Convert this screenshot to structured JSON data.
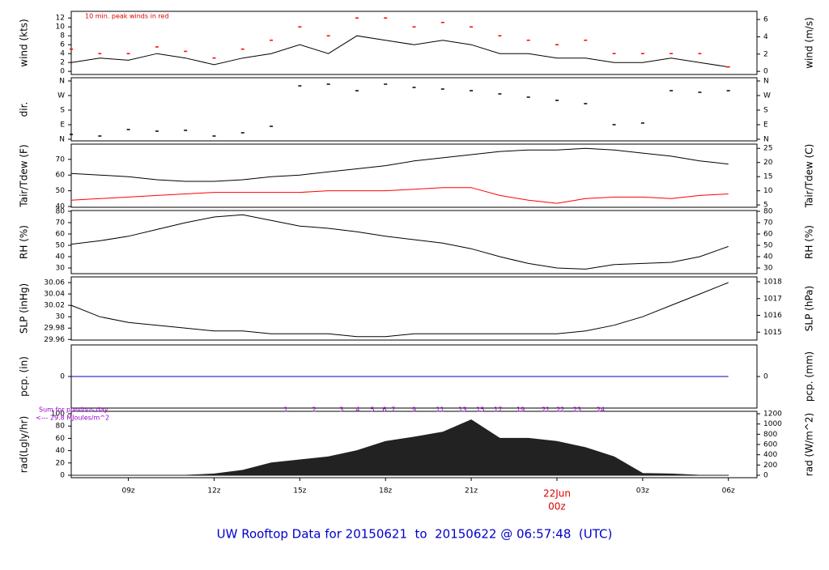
{
  "chart_data": [
    {
      "type": "line",
      "ylabel": "wind (kts)",
      "y2label": "wind (m/s)",
      "annotation": "10 min. peak winds in red",
      "x": [
        7,
        8,
        9,
        10,
        11,
        12,
        13,
        14,
        15,
        16,
        17,
        18,
        19,
        20,
        21,
        22,
        23,
        24,
        25,
        26,
        27,
        28,
        29,
        30
      ],
      "xlim": [
        7,
        31
      ],
      "ylim": [
        -0.7,
        13.5
      ],
      "yticks": [
        0,
        2,
        4,
        6,
        8,
        10,
        12
      ],
      "y2lim": [
        -0.36,
        6.94
      ],
      "y2ticks": [
        0,
        2,
        4,
        6
      ],
      "series": [
        {
          "color": "#000000",
          "values": [
            2,
            3,
            2.5,
            4,
            3,
            1.5,
            3,
            4,
            6,
            4,
            8,
            7,
            6,
            7,
            6,
            4,
            4,
            3,
            3,
            2,
            2,
            3,
            2,
            1
          ]
        },
        {
          "color": "#ff0000",
          "style": "points",
          "values": [
            5,
            4,
            4,
            5.5,
            4.5,
            3,
            5,
            7,
            10,
            8,
            12,
            12,
            10,
            11,
            10,
            8,
            7,
            6,
            7,
            4,
            4,
            4,
            4,
            1
          ]
        }
      ]
    },
    {
      "type": "scatter",
      "ylabel": "dir.",
      "mirror_ticks": true,
      "x": [
        7,
        8,
        9,
        10,
        11,
        12,
        13,
        14,
        15,
        16,
        17,
        18,
        19,
        20,
        21,
        22,
        23,
        24,
        25,
        26,
        27,
        28,
        29,
        30
      ],
      "xlim": [
        7,
        31
      ],
      "ylim": [
        -10,
        380
      ],
      "yticks": [
        {
          "value": 0,
          "label": "N"
        },
        {
          "value": 90,
          "label": "E"
        },
        {
          "value": 180,
          "label": "S"
        },
        {
          "value": 270,
          "label": "W"
        },
        {
          "value": 360,
          "label": "N"
        }
      ],
      "series": [
        {
          "color": "#000000",
          "values": [
            30,
            20,
            60,
            50,
            55,
            20,
            40,
            80,
            330,
            340,
            300,
            340,
            320,
            310,
            300,
            280,
            260,
            240,
            220,
            90,
            100,
            300,
            290,
            300
          ]
        }
      ]
    },
    {
      "type": "line",
      "ylabel": "Tair/Tdew (F)",
      "y2label": "Tair/Tdew (C)",
      "x": [
        7,
        8,
        9,
        10,
        11,
        12,
        13,
        14,
        15,
        16,
        17,
        18,
        19,
        20,
        21,
        22,
        23,
        24,
        25,
        26,
        27,
        28,
        29,
        30
      ],
      "xlim": [
        7,
        31
      ],
      "ylim": [
        39.5,
        79.7
      ],
      "yticks": [
        40,
        50,
        60,
        70
      ],
      "y2lim": [
        4.17,
        26.5
      ],
      "y2ticks": [
        5,
        10,
        15,
        20,
        25
      ],
      "series": [
        {
          "color": "#000000",
          "values": [
            61,
            60,
            59,
            57,
            56,
            56,
            57,
            59,
            60,
            62,
            64,
            66,
            69,
            71,
            73,
            75,
            76,
            76,
            77,
            76,
            74,
            72,
            69,
            67
          ]
        },
        {
          "color": "#ff0000",
          "values": [
            44,
            45,
            46,
            47,
            48,
            49,
            49,
            49,
            49,
            50,
            50,
            50,
            51,
            52,
            52,
            47,
            44,
            42,
            45,
            46,
            46,
            45,
            47,
            48
          ]
        }
      ]
    },
    {
      "type": "line",
      "ylabel": "RH (%)",
      "y2label": "RH (%)",
      "mirror_ticks": true,
      "x": [
        7,
        8,
        9,
        10,
        11,
        12,
        13,
        14,
        15,
        16,
        17,
        18,
        19,
        20,
        21,
        22,
        23,
        24,
        25,
        26,
        27,
        28,
        29,
        30
      ],
      "xlim": [
        7,
        31
      ],
      "ylim": [
        25,
        80.7
      ],
      "yticks": [
        30,
        40,
        50,
        60,
        70,
        80
      ],
      "series": [
        {
          "color": "#000000",
          "values": [
            51,
            54,
            58,
            64,
            70,
            75,
            77,
            72,
            67,
            65,
            62,
            58,
            55,
            52,
            47,
            40,
            34,
            30,
            29,
            33,
            34,
            35,
            40,
            49
          ]
        }
      ]
    },
    {
      "type": "line",
      "ylabel": "SLP (inHg)",
      "y2label": "SLP (hPa)",
      "x": [
        7,
        8,
        9,
        10,
        11,
        12,
        13,
        14,
        15,
        16,
        17,
        18,
        19,
        20,
        21,
        22,
        23,
        24,
        25,
        26,
        27,
        28,
        29,
        30
      ],
      "xlim": [
        7,
        31
      ],
      "ylim": [
        29.959,
        30.07
      ],
      "yticks": [
        29.96,
        29.98,
        30,
        30.02,
        30.04,
        30.06
      ],
      "y2lim": [
        1014.53,
        1018.29
      ],
      "y2ticks": [
        1015,
        1016,
        1017,
        1018
      ],
      "series": [
        {
          "color": "#000000",
          "values": [
            30.02,
            30,
            29.99,
            29.985,
            29.98,
            29.975,
            29.975,
            29.97,
            29.97,
            29.97,
            29.965,
            29.965,
            29.97,
            29.97,
            29.97,
            29.97,
            29.97,
            29.97,
            29.975,
            29.985,
            30,
            30.02,
            30.04,
            30.06
          ]
        }
      ]
    },
    {
      "type": "line",
      "ylabel": "pcp. (in)",
      "y2label": "pcp. (mm)",
      "x": [
        7,
        8,
        9,
        10,
        11,
        12,
        13,
        14,
        15,
        16,
        17,
        18,
        19,
        20,
        21,
        22,
        23,
        24,
        25,
        26,
        27,
        28,
        29,
        30
      ],
      "xlim": [
        7,
        31
      ],
      "ylim": [
        -1,
        1
      ],
      "yticks": [
        0
      ],
      "y2lim": [
        -1,
        1
      ],
      "y2ticks": [
        0
      ],
      "series": [
        {
          "color": "#0000cc",
          "values": [
            0,
            0,
            0,
            0,
            0,
            0,
            0,
            0,
            0,
            0,
            0,
            0,
            0,
            0,
            0,
            0,
            0,
            0,
            0,
            0,
            0,
            0,
            0,
            0
          ]
        }
      ]
    },
    {
      "type": "area",
      "ylabel": "rad(Lgly/hr)",
      "y2label": "rad (W/m^2)",
      "note1": "Sum for previous day",
      "note2": "<--- 29.8 MJoules/m^2",
      "x": [
        7,
        8,
        9,
        10,
        11,
        12,
        13,
        14,
        15,
        16,
        17,
        18,
        19,
        20,
        21,
        22,
        23,
        24,
        25,
        26,
        27,
        28,
        29,
        30
      ],
      "xlim": [
        7,
        31
      ],
      "ylim": [
        -4,
        104
      ],
      "yticks": [
        0,
        20,
        40,
        60,
        80,
        100
      ],
      "y2lim": [
        -48,
        1248
      ],
      "y2ticks": [
        0,
        200,
        400,
        600,
        800,
        1000,
        1200
      ],
      "series": [
        {
          "color": "#222222",
          "values": [
            0,
            0,
            0,
            0,
            0,
            2,
            8,
            20,
            25,
            30,
            40,
            55,
            62,
            70,
            90,
            60,
            60,
            55,
            45,
            30,
            3,
            2,
            0,
            0
          ]
        }
      ],
      "hour_marks": {
        "x": [
          14.51,
          15.5,
          16.46,
          17.03,
          17.54,
          17.96,
          18.27,
          19,
          19.91,
          20.7,
          21.32,
          21.94,
          22.73,
          23.61,
          24.12,
          24.71,
          25.53
        ],
        "labels": [
          "1",
          "2",
          "3",
          "4",
          "5",
          "6",
          "7",
          "9",
          "11",
          "13",
          "15",
          "17",
          "19",
          "21",
          "22",
          "23",
          "24"
        ]
      },
      "xticks": [
        {
          "value": 9,
          "label": "09z"
        },
        {
          "value": 12,
          "label": "12z"
        },
        {
          "value": 15,
          "label": "15z"
        },
        {
          "value": 18,
          "label": "18z"
        },
        {
          "value": 21,
          "label": "21z"
        },
        {
          "value": 24,
          "label": "00z"
        },
        {
          "value": 27,
          "label": "03z"
        },
        {
          "value": 30,
          "label": "06z"
        }
      ],
      "date_tick": {
        "value": 24,
        "label": "22Jun"
      },
      "date_color": "#dd0000"
    }
  ],
  "footer": "UW Rooftop Data for 20150621  to  20150622 @ 06:57:48  (UTC)"
}
